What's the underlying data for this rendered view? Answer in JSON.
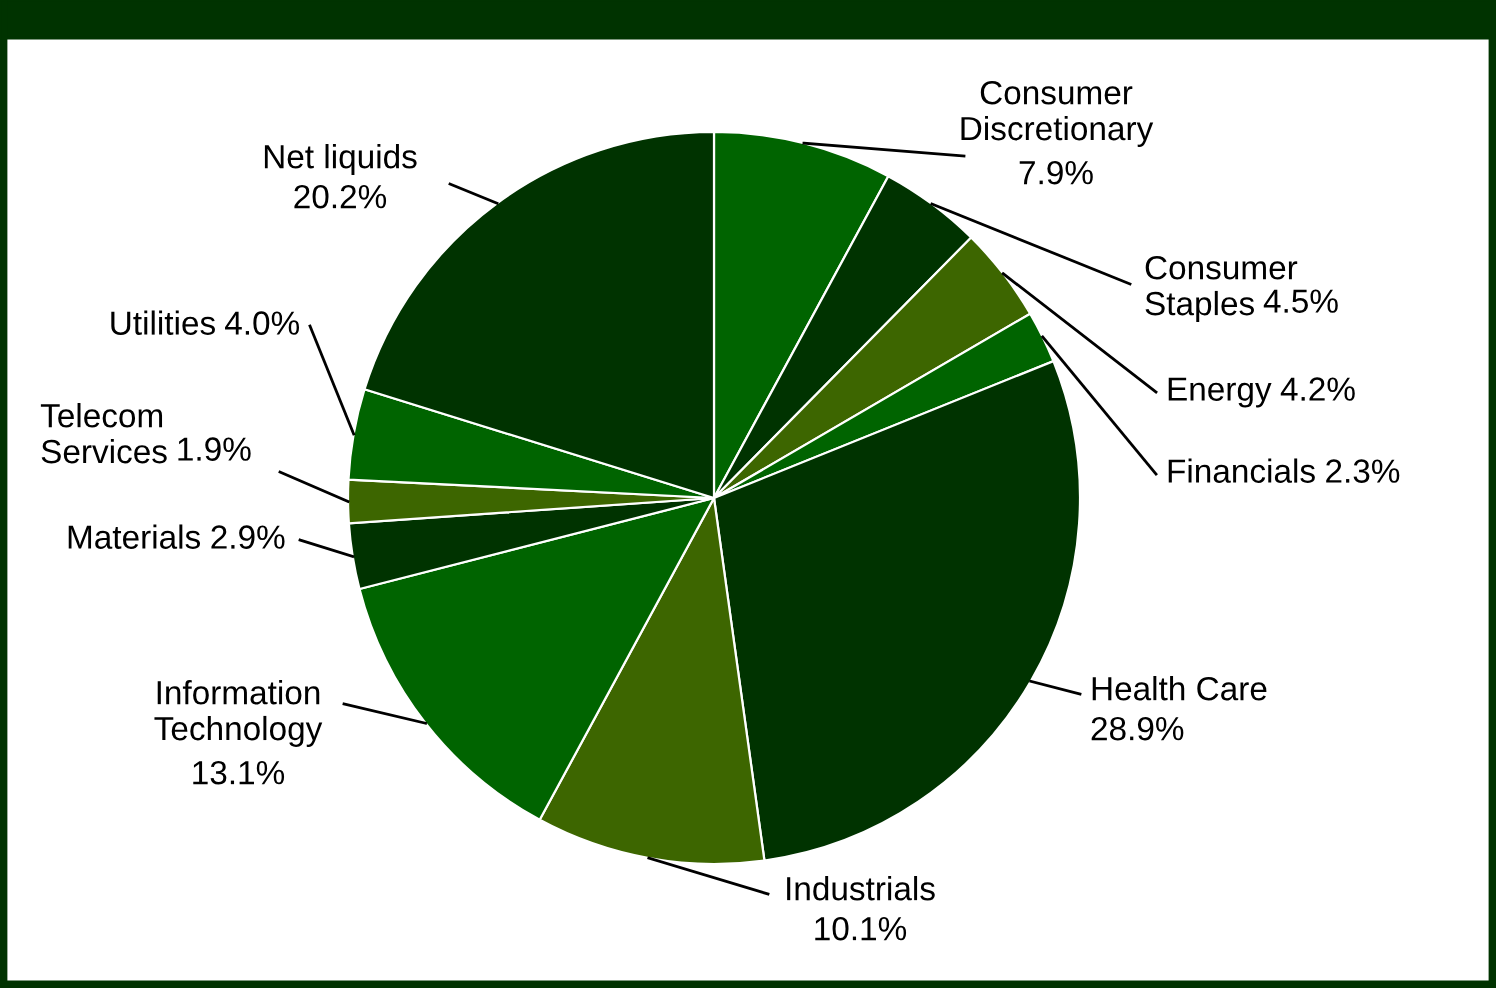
{
  "chart_data": {
    "type": "pie",
    "categories": [
      "Consumer Discretionary",
      "Consumer Staples",
      "Energy",
      "Financials",
      "Health Care",
      "Industrials",
      "Information Technology",
      "Materials",
      "Telecom Services",
      "Utilities",
      "Net liquids"
    ],
    "values": [
      7.9,
      4.5,
      4.2,
      2.3,
      28.9,
      10.1,
      13.1,
      2.9,
      1.9,
      4.0,
      20.2
    ],
    "colors": [
      "#006400",
      "#003300",
      "#3d6600",
      "#006400",
      "#003300",
      "#3d6600",
      "#006400",
      "#003300",
      "#3d6600",
      "#006400",
      "#003300"
    ],
    "data_labels": true,
    "value_labels": [
      "7.9%",
      "4.5%",
      "4.2%",
      "2.3%",
      "28.9%",
      "10.1%",
      "13.1%",
      "2.9%",
      "1.9%",
      "4.0%",
      "20.2%"
    ]
  }
}
